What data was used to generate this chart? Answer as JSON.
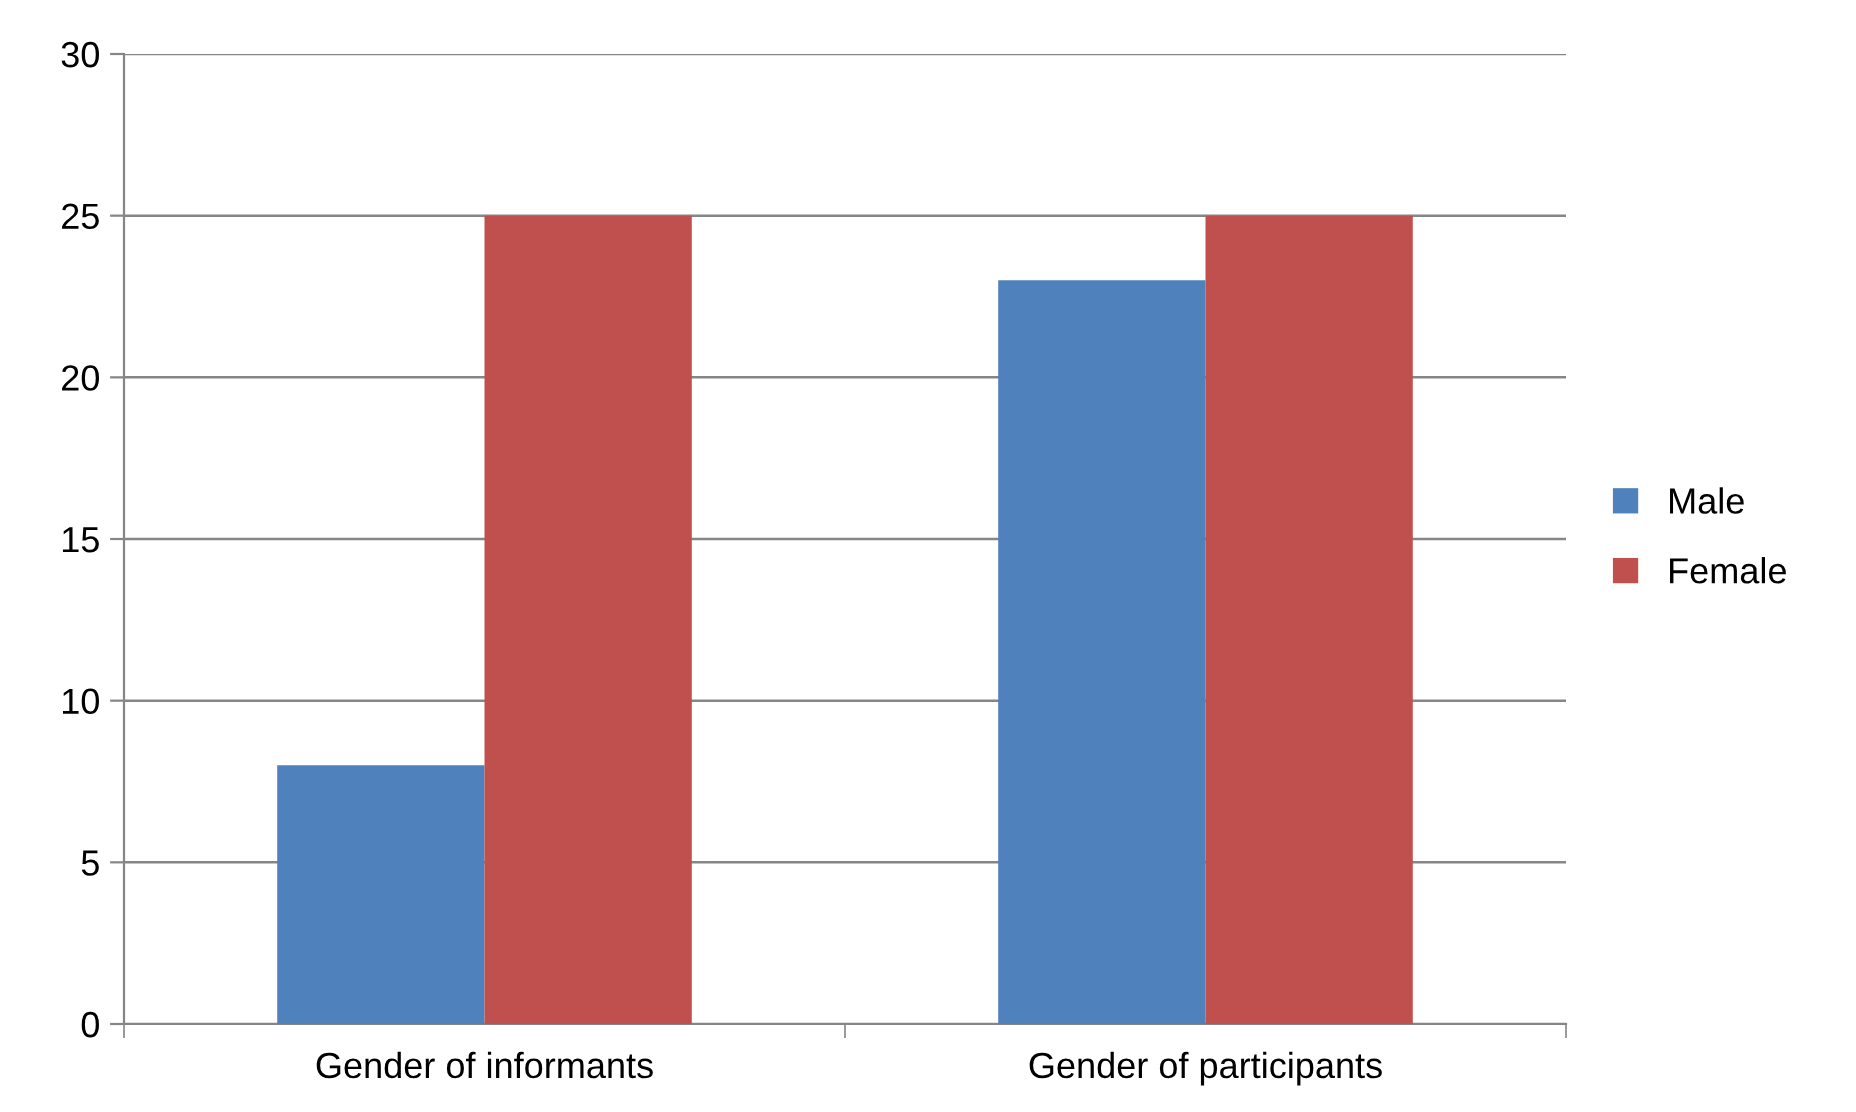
{
  "chart_data": {
    "type": "bar",
    "categories": [
      "Gender of informants",
      "Gender of participants"
    ],
    "series": [
      {
        "name": "Male",
        "color": "#4f81bd",
        "values": [
          8,
          23
        ]
      },
      {
        "name": "Female",
        "color": "#c0504d",
        "values": [
          25,
          25
        ]
      }
    ],
    "ylim": [
      0,
      30
    ],
    "yticks": [
      0,
      5,
      10,
      15,
      20,
      25,
      30
    ],
    "grid": "y",
    "legend": "right"
  }
}
